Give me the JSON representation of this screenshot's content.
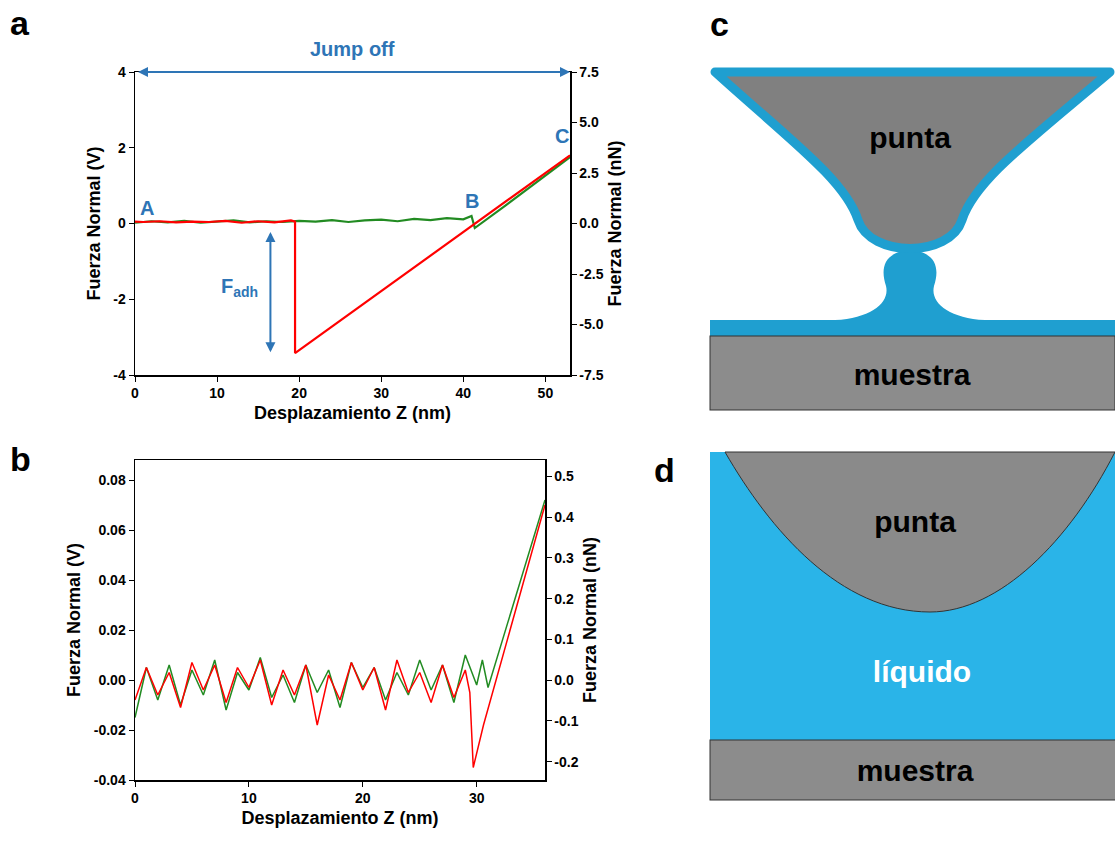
{
  "chart_data": [
    {
      "panel_label": "a",
      "type": "line",
      "x_label": "Desplazamiento Z (nm)",
      "y_label": "Fuerza Normal (V)",
      "y2_label": "Fuerza Normal (nN)",
      "xlim": [
        0,
        53
      ],
      "xticks": [
        0,
        10,
        20,
        30,
        40,
        50
      ],
      "ylim": [
        -4,
        4
      ],
      "yticks": [
        -4,
        -2,
        0,
        2,
        4
      ],
      "y2lim": [
        -7.5,
        7.5
      ],
      "y2ticks": [
        -7.5,
        {
          "value": -5,
          "label": "-5.0"
        },
        -2.5,
        {
          "value": 0,
          "label": "0.0"
        },
        2.5,
        {
          "value": 5,
          "label": "5.0"
        },
        7.5
      ],
      "grid": false,
      "series": [
        {
          "color": "#228b22",
          "x": [
            0,
            2,
            4,
            6,
            8,
            10,
            12,
            14,
            16,
            18,
            20,
            22,
            24,
            26,
            28,
            30,
            32,
            34,
            36,
            38,
            40,
            41,
            41.4,
            45,
            50,
            53
          ],
          "values": [
            0.02,
            0.06,
            0.03,
            0.07,
            0.02,
            0.05,
            0.08,
            0.03,
            0.06,
            0.04,
            0.07,
            0.05,
            0.09,
            0.04,
            0.08,
            0.1,
            0.06,
            0.12,
            0.09,
            0.14,
            0.11,
            0.2,
            -0.12,
            0.45,
            1.25,
            1.75
          ]
        },
        {
          "color": "#ff0000",
          "x": [
            53,
            19.5,
            19.5,
            19,
            17,
            15,
            13,
            11,
            9,
            7,
            5,
            3,
            1,
            0
          ],
          "values": [
            1.8,
            -3.42,
            0.05,
            0.08,
            0.03,
            0.06,
            0.02,
            0.07,
            0.04,
            0.05,
            0.03,
            0.06,
            0.04,
            0.05
          ]
        }
      ],
      "annotations": [
        {
          "text": "A",
          "x": 1.5,
          "y": 0.4
        },
        {
          "text": "B",
          "x": 41,
          "y": 0.6
        },
        {
          "text": "C",
          "x": 52,
          "y": 2.3
        },
        {
          "text": "Jump off",
          "x0": 0,
          "x1": 53,
          "y": 4
        },
        {
          "text": "F",
          "subscript": "adh",
          "x": 16.5,
          "y0": 0,
          "y1": -3.4
        }
      ]
    },
    {
      "panel_label": "b",
      "type": "line",
      "x_label": "Desplazamiento Z (nm)",
      "y_label": "Fuerza Normal (V)",
      "y2_label": "Fuerza Normal (nN)",
      "xlim": [
        0,
        36
      ],
      "xticks": [
        0,
        10,
        20,
        30
      ],
      "ylim": [
        -0.04,
        0.088
      ],
      "yticks": [
        -0.04,
        -0.02,
        {
          "value": 0,
          "label": "0.00"
        },
        0.02,
        0.04,
        0.06,
        0.08
      ],
      "y2lim": [
        -0.245,
        0.54
      ],
      "y2ticks": [
        -0.2,
        -0.1,
        {
          "value": 0,
          "label": "0.0"
        },
        0.1,
        0.2,
        0.3,
        0.4,
        0.5
      ],
      "grid": false,
      "series": [
        {
          "color": "#228b22",
          "x": [
            0,
            1,
            2,
            3,
            4,
            5,
            6,
            7,
            8,
            9,
            10,
            11,
            12,
            13,
            14,
            15,
            16,
            17,
            18,
            19,
            20,
            21,
            22,
            23,
            24,
            25,
            26,
            27,
            28,
            29,
            30,
            30.5,
            31,
            36
          ],
          "values": [
            -0.015,
            0.005,
            -0.008,
            0.006,
            -0.01,
            0.004,
            -0.006,
            0.008,
            -0.012,
            0.003,
            -0.004,
            0.009,
            -0.007,
            0.002,
            -0.009,
            0.006,
            -0.005,
            0.004,
            -0.011,
            0.007,
            -0.003,
            0.005,
            -0.008,
            0.003,
            -0.006,
            0.008,
            -0.004,
            0.006,
            -0.009,
            0.01,
            -0.002,
            0.008,
            -0.003,
            0.072
          ]
        },
        {
          "color": "#ff0000",
          "x": [
            36,
            30.6,
            29.7,
            29.4,
            29,
            28,
            27,
            26,
            25,
            24,
            23,
            22,
            21,
            20,
            19,
            18,
            17,
            16,
            15,
            14,
            13,
            12,
            11,
            10,
            9,
            8,
            7,
            6,
            5,
            4,
            3,
            2,
            1,
            0
          ],
          "values": [
            0.07,
            -0.018,
            -0.035,
            -0.005,
            0.004,
            -0.007,
            0.006,
            -0.009,
            0.003,
            -0.005,
            0.008,
            -0.012,
            0.005,
            -0.004,
            0.007,
            -0.008,
            0.002,
            -0.018,
            0.006,
            -0.006,
            0.004,
            -0.01,
            0.008,
            -0.003,
            0.005,
            -0.009,
            0.006,
            -0.004,
            0.007,
            -0.011,
            0.003,
            -0.006,
            0.005,
            -0.008
          ]
        }
      ],
      "annotations": []
    }
  ],
  "diagrams": [
    {
      "panel_label": "c",
      "labels": {
        "tip": "punta",
        "sample": "muestra"
      }
    },
    {
      "panel_label": "d",
      "labels": {
        "tip": "punta",
        "liquid": "líquido",
        "sample": "muestra"
      }
    }
  ]
}
